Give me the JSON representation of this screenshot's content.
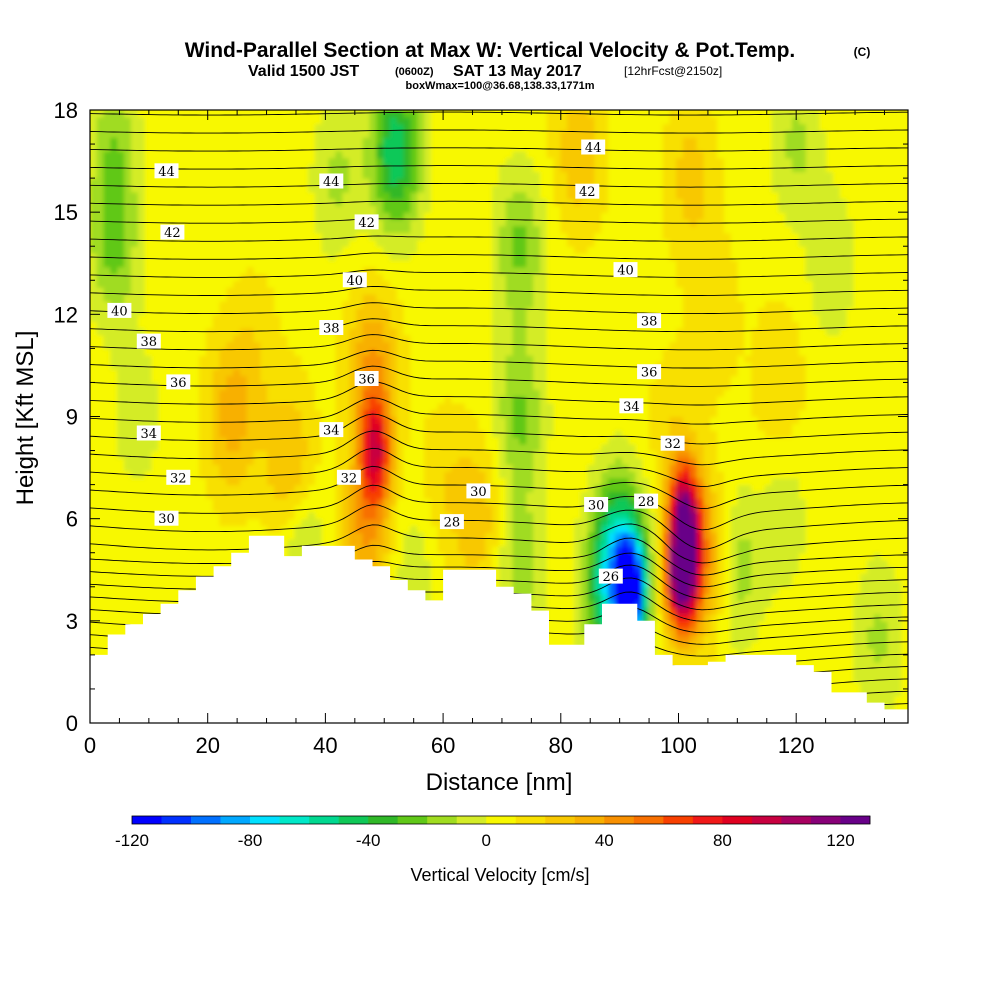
{
  "header": {
    "title": "Wind-Parallel Section at Max W: Vertical Velocity & Pot.Temp.",
    "copyright": "(C)",
    "valid_prefix": "Valid 1500 JST",
    "valid_utc": "(0600Z)",
    "valid_date": "SAT 13 May 2017",
    "forecast": "[12hrFcst@2150z]",
    "box": "boxWmax=100@36.68,138.33,1771m"
  },
  "chart_data": {
    "type": "heatmap",
    "title": "Wind-Parallel Section at Max W: Vertical Velocity & Pot.Temp.",
    "xlabel": "Distance [nm]",
    "ylabel": "Height [Kft MSL]",
    "xlim": [
      0,
      139
    ],
    "ylim": [
      0,
      18
    ],
    "x_ticks": [
      0,
      20,
      40,
      60,
      80,
      100,
      120
    ],
    "x_tick_labels": [
      "0",
      "20",
      "40",
      "60",
      "80",
      "100",
      "120"
    ],
    "y_ticks": [
      0,
      3,
      6,
      9,
      12,
      15,
      18
    ],
    "y_tick_labels": [
      "0",
      "3",
      "6",
      "9",
      "12",
      "15",
      "18"
    ],
    "colorbar": {
      "label": "Vertical Velocity [cm/s]",
      "min": -120,
      "max": 130,
      "step": 10,
      "tick_values": [
        -120,
        -80,
        -40,
        0,
        40,
        80,
        120
      ],
      "tick_labels": [
        "-120",
        "-80",
        "-40",
        "0",
        "40",
        "80",
        "120"
      ],
      "colors": [
        "#0000ff",
        "#0030ff",
        "#0070ff",
        "#00a8ff",
        "#00e0ff",
        "#00e8c8",
        "#00d890",
        "#10c858",
        "#30b828",
        "#60c818",
        "#a0dc20",
        "#d4ec28",
        "#f8f800",
        "#f8e000",
        "#f8c800",
        "#f8b000",
        "#f89000",
        "#f87000",
        "#f84000",
        "#f01818",
        "#e00020",
        "#c80040",
        "#a80060",
        "#880078",
        "#680088"
      ]
    },
    "velocity_cores": [
      {
        "x": 100.5,
        "y": 4.3,
        "w": 120
      },
      {
        "x": 101,
        "y": 6.2,
        "w": 90
      },
      {
        "x": 104,
        "y": 4.8,
        "w": 40
      },
      {
        "x": 92,
        "y": 3.9,
        "w": -110
      },
      {
        "x": 90,
        "y": 5.0,
        "w": -60
      },
      {
        "x": 88,
        "y": 3.6,
        "w": -40
      },
      {
        "x": 48.5,
        "y": 8.0,
        "w": 70
      },
      {
        "x": 48,
        "y": 10.5,
        "w": 35
      },
      {
        "x": 47,
        "y": 5.8,
        "w": 35
      },
      {
        "x": 24,
        "y": 9.0,
        "w": 28
      },
      {
        "x": 34,
        "y": 7.5,
        "w": 28
      },
      {
        "x": 28,
        "y": 11.0,
        "w": 10
      },
      {
        "x": 66,
        "y": 6.0,
        "w": 22
      },
      {
        "x": 60,
        "y": 7.0,
        "w": 12
      },
      {
        "x": 83,
        "y": 16.8,
        "w": 22
      },
      {
        "x": 102,
        "y": 16.0,
        "w": 18
      },
      {
        "x": 106,
        "y": 12.0,
        "w": 12
      },
      {
        "x": 117,
        "y": 10.0,
        "w": 14
      },
      {
        "x": 99,
        "y": 8.5,
        "w": 12
      },
      {
        "x": 52,
        "y": 16.8,
        "w": -55
      },
      {
        "x": 42,
        "y": 16.0,
        "w": -18
      },
      {
        "x": 73,
        "y": 14.0,
        "w": -28
      },
      {
        "x": 73,
        "y": 9.0,
        "w": -28
      },
      {
        "x": 73,
        "y": 4.5,
        "w": -22
      },
      {
        "x": 4,
        "y": 14.0,
        "w": -28
      },
      {
        "x": 4,
        "y": 17.0,
        "w": -22
      },
      {
        "x": 8,
        "y": 9.0,
        "w": -12
      },
      {
        "x": 120,
        "y": 17.0,
        "w": -18
      },
      {
        "x": 126,
        "y": 13.5,
        "w": -14
      },
      {
        "x": 110,
        "y": 4.5,
        "w": -22
      },
      {
        "x": 134,
        "y": 2.5,
        "w": -18
      },
      {
        "x": 36,
        "y": 5.1,
        "w": -22
      },
      {
        "x": 55,
        "y": 4.3,
        "w": -14
      },
      {
        "x": 118,
        "y": 6.0,
        "w": -12
      }
    ],
    "terrain": {
      "x": [
        0,
        3,
        6,
        9,
        12,
        15,
        18,
        21,
        24,
        27,
        33,
        36,
        45,
        48,
        51,
        54,
        57,
        60,
        63,
        66,
        69,
        72,
        75,
        78,
        81,
        84,
        87,
        90,
        93,
        96,
        99,
        102,
        105,
        108,
        111,
        114,
        117,
        120,
        123,
        126,
        129,
        132,
        135,
        138
      ],
      "y": [
        2.0,
        2.6,
        2.9,
        3.2,
        3.5,
        3.9,
        4.3,
        4.6,
        5.0,
        5.5,
        4.9,
        5.2,
        4.8,
        4.6,
        4.2,
        3.9,
        3.6,
        4.5,
        4.5,
        4.5,
        4.0,
        3.8,
        3.3,
        2.3,
        2.3,
        2.9,
        3.5,
        3.5,
        3.0,
        2.0,
        1.7,
        1.7,
        1.8,
        2.0,
        2.0,
        2.0,
        2.0,
        1.7,
        1.5,
        0.9,
        0.9,
        0.6,
        0.4,
        0.4
      ]
    },
    "contour_interval": 0.5,
    "contour_min": 25,
    "contour_max": 45,
    "contour_labels": [
      {
        "text": "44",
        "x": 13,
        "y": 16.2
      },
      {
        "text": "44",
        "x": 41,
        "y": 15.9
      },
      {
        "text": "44",
        "x": 85.5,
        "y": 16.9
      },
      {
        "text": "42",
        "x": 14,
        "y": 14.4
      },
      {
        "text": "42",
        "x": 47,
        "y": 14.7
      },
      {
        "text": "42",
        "x": 84.5,
        "y": 15.6
      },
      {
        "text": "40",
        "x": 5,
        "y": 12.1
      },
      {
        "text": "40",
        "x": 45,
        "y": 13.0
      },
      {
        "text": "40",
        "x": 91,
        "y": 13.3
      },
      {
        "text": "38",
        "x": 10,
        "y": 11.2
      },
      {
        "text": "38",
        "x": 41,
        "y": 11.6
      },
      {
        "text": "38",
        "x": 95,
        "y": 11.8
      },
      {
        "text": "36",
        "x": 15,
        "y": 10.0
      },
      {
        "text": "36",
        "x": 47,
        "y": 10.1
      },
      {
        "text": "36",
        "x": 95,
        "y": 10.3
      },
      {
        "text": "34",
        "x": 10,
        "y": 8.5
      },
      {
        "text": "34",
        "x": 41,
        "y": 8.6
      },
      {
        "text": "34",
        "x": 92,
        "y": 9.3
      },
      {
        "text": "32",
        "x": 15,
        "y": 7.2
      },
      {
        "text": "32",
        "x": 44,
        "y": 7.2
      },
      {
        "text": "32",
        "x": 99,
        "y": 8.2
      },
      {
        "text": "30",
        "x": 13,
        "y": 6.0
      },
      {
        "text": "30",
        "x": 66,
        "y": 6.8
      },
      {
        "text": "30",
        "x": 86,
        "y": 6.4
      },
      {
        "text": "28",
        "x": 61.5,
        "y": 5.9
      },
      {
        "text": "28",
        "x": 94.5,
        "y": 6.5
      },
      {
        "text": "26",
        "x": 88.5,
        "y": 4.3
      }
    ]
  }
}
